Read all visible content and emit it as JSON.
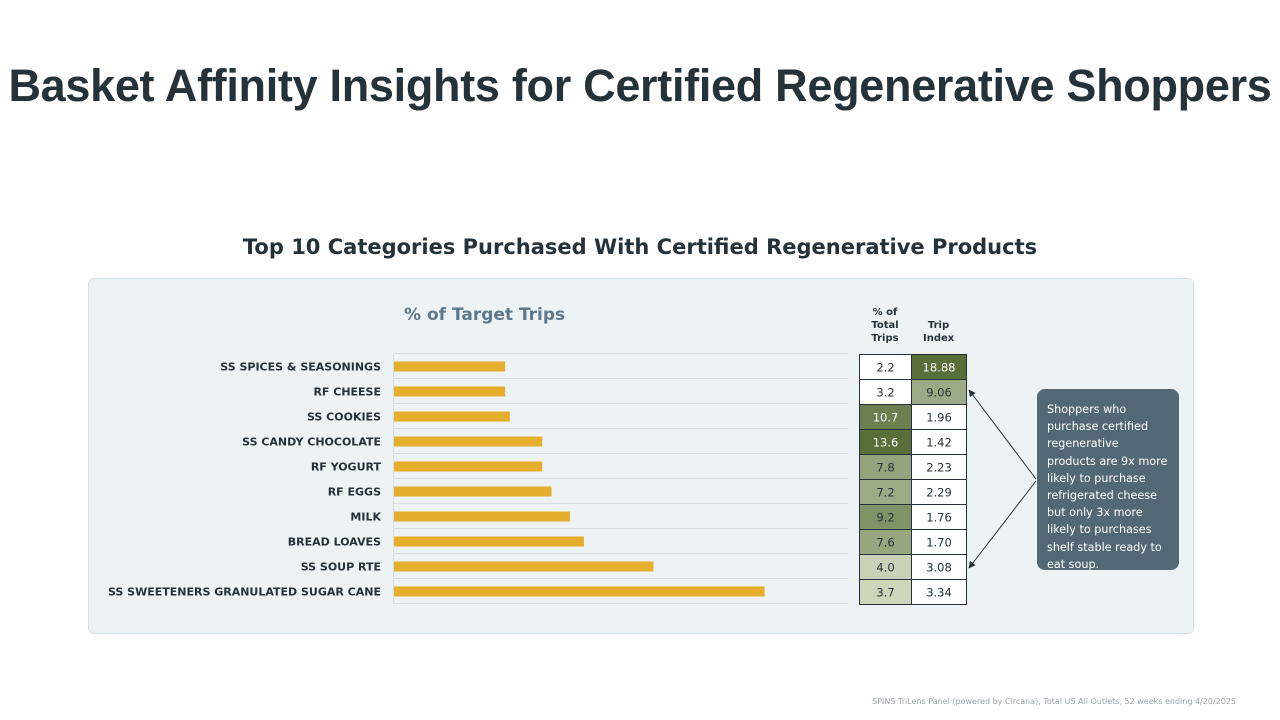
{
  "page": {
    "title": "Basket Affinity Insights for Certified Regenerative Shoppers",
    "source": "SPINS TriLens Panel (powered by Circana), Total US All Outlets, 52 weeks ending 4/20/2025"
  },
  "chart_data": {
    "type": "bar",
    "orientation": "horizontal",
    "title": "Top 10 Categories Purchased With Certified Regenerative Products",
    "series_label": "% of Target Trips",
    "categories": [
      "SS SPICES & SEASONINGS",
      "RF CHEESE",
      "SS COOKIES",
      "SS CANDY CHOCOLATE",
      "RF YOGURT",
      "RF EGGS",
      "MILK",
      "BREAD LOAVES",
      "SS SOUP RTE",
      "SS SWEETENERS GRANULATED SUGAR CANE"
    ],
    "values": [
      2.4,
      2.4,
      2.5,
      3.2,
      3.2,
      3.4,
      3.8,
      4.1,
      5.6,
      8.0
    ],
    "xlim": [
      0,
      9.8
    ],
    "bar_color": "#e5ae2d",
    "grid": false,
    "table": {
      "headers": [
        "% of Total Trips",
        "Trip Index"
      ],
      "pct_total_trips": [
        "2.2",
        "3.2",
        "10.7",
        "13.6",
        "7.8",
        "7.2",
        "9.2",
        "7.6",
        "4.0",
        "3.7"
      ],
      "trip_index": [
        "18.88",
        "9.06",
        "1.96",
        "1.42",
        "2.23",
        "2.29",
        "1.76",
        "1.70",
        "3.08",
        "3.34"
      ]
    }
  },
  "callout": {
    "text": "Shoppers who purchase certified regenerative products are 9x more likely to purchase refrigerated cheese but only 3x more likely to purchases shelf stable ready to eat soup."
  },
  "colors": {
    "title": "#26323a",
    "panel_bg": "#edf2f5",
    "series_label": "#5c7a8c",
    "callout_bg": "#536875",
    "heat_dark": "#5a6e3a",
    "heat_light": "#dfe8d2"
  }
}
